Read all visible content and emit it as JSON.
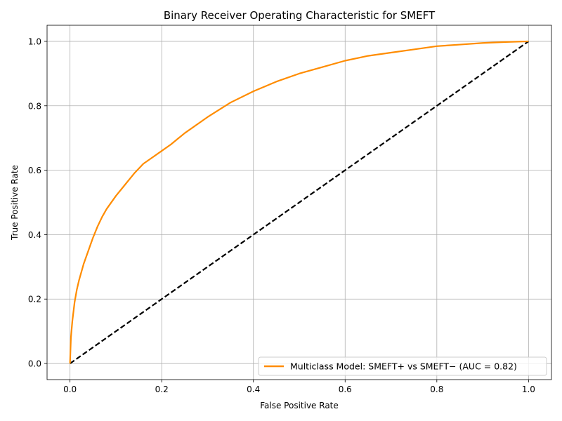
{
  "chart_data": {
    "type": "line",
    "title": "Binary Receiver Operating Characteristic for SMEFT",
    "xlabel": "False Positive Rate",
    "ylabel": "True Positive Rate",
    "xlim": [
      -0.05,
      1.05
    ],
    "ylim": [
      -0.05,
      1.05
    ],
    "xticks": [
      0.0,
      0.2,
      0.4,
      0.6,
      0.8,
      1.0
    ],
    "yticks": [
      0.0,
      0.2,
      0.4,
      0.6,
      0.8,
      1.0
    ],
    "xtick_labels": [
      "0.0",
      "0.2",
      "0.4",
      "0.6",
      "0.8",
      "1.0"
    ],
    "ytick_labels": [
      "0.0",
      "0.2",
      "0.4",
      "0.6",
      "0.8",
      "1.0"
    ],
    "grid": true,
    "legend_position": "lower-right",
    "series": [
      {
        "name": "Multiclass Model: SMEFT+ vs SMEFT− (AUC = 0.82)",
        "color": "#ff8c00",
        "style": "solid",
        "x": [
          0.0,
          0.002,
          0.005,
          0.01,
          0.015,
          0.02,
          0.03,
          0.04,
          0.05,
          0.06,
          0.07,
          0.08,
          0.1,
          0.12,
          0.14,
          0.16,
          0.18,
          0.2,
          0.22,
          0.25,
          0.3,
          0.35,
          0.4,
          0.45,
          0.5,
          0.55,
          0.6,
          0.65,
          0.7,
          0.75,
          0.8,
          0.85,
          0.9,
          0.95,
          1.0
        ],
        "y": [
          0.0,
          0.08,
          0.13,
          0.19,
          0.23,
          0.26,
          0.31,
          0.35,
          0.39,
          0.425,
          0.455,
          0.48,
          0.52,
          0.555,
          0.59,
          0.62,
          0.64,
          0.66,
          0.68,
          0.715,
          0.765,
          0.81,
          0.845,
          0.875,
          0.9,
          0.92,
          0.94,
          0.955,
          0.965,
          0.975,
          0.985,
          0.99,
          0.995,
          0.998,
          1.0
        ]
      },
      {
        "name": "",
        "color": "#000000",
        "style": "dashed",
        "x": [
          0.0,
          1.0
        ],
        "y": [
          0.0,
          1.0
        ]
      }
    ]
  }
}
